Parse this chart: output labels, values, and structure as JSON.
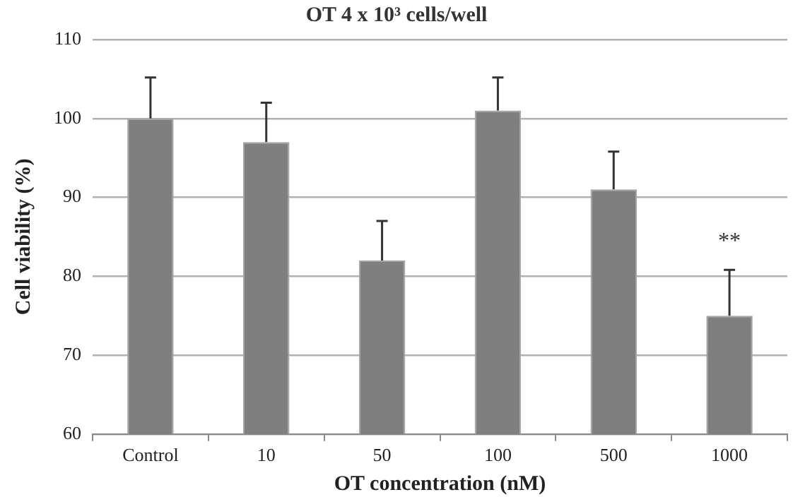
{
  "chart_data": {
    "type": "bar",
    "title": "OT 4 x 10³ cells/well",
    "xlabel": "OT concentration (nM)",
    "ylabel": "Cell viability (%)",
    "categories": [
      "Control",
      "10",
      "50",
      "100",
      "500",
      "1000"
    ],
    "values": [
      100,
      97,
      82,
      101,
      91,
      75
    ],
    "errors": [
      [
        100,
        105.2
      ],
      [
        97,
        102
      ],
      [
        82,
        87
      ],
      [
        101,
        105.2
      ],
      [
        91,
        95.8
      ],
      [
        75,
        80.8
      ]
    ],
    "color": "#7f7f7f",
    "ylim": [
      60,
      110
    ],
    "yticks": [
      60,
      70,
      80,
      90,
      100,
      110
    ],
    "grid": "y",
    "legend": false,
    "annotations": [
      "**"
    ]
  }
}
